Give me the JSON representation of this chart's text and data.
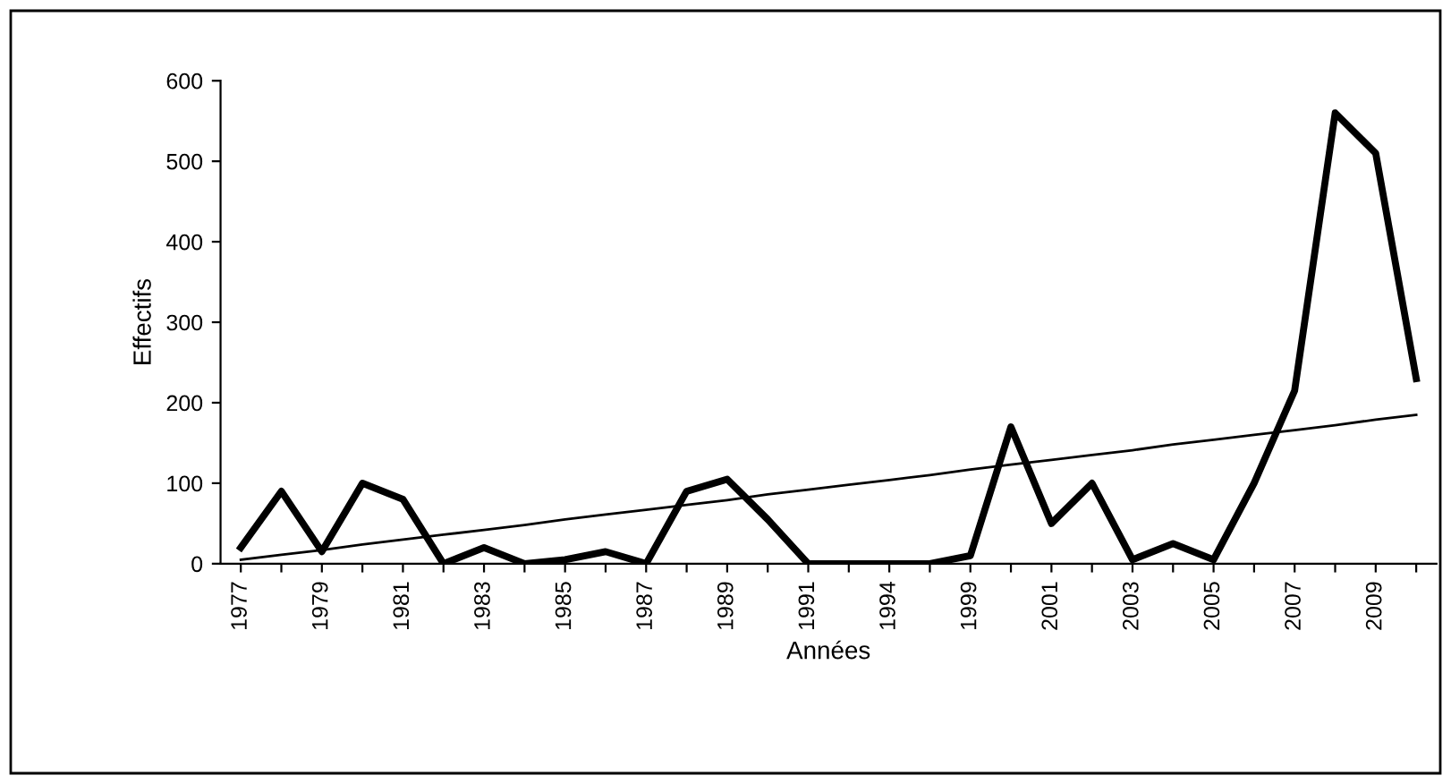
{
  "chart_data": {
    "type": "line",
    "xlabel": "Années",
    "ylabel": "Effectifs",
    "categories": [
      "1977",
      null,
      "1979",
      null,
      "1981",
      null,
      "1983",
      null,
      "1985",
      null,
      "1987",
      null,
      "1989",
      null,
      "1991",
      null,
      "1994",
      null,
      "1999",
      null,
      "2001",
      null,
      "2003",
      null,
      "2005",
      null,
      "2007",
      null,
      "2009",
      null
    ],
    "series": [
      {
        "color": "#000000",
        "values": [
          20,
          90,
          15,
          100,
          80,
          0,
          20,
          0,
          5,
          15,
          0,
          90,
          105,
          55,
          0,
          0,
          0,
          0,
          10,
          170,
          50,
          100,
          5,
          25,
          5,
          100,
          215,
          560,
          510,
          230
        ]
      },
      {
        "color": "#000000",
        "values": [
          5,
          11,
          17,
          24,
          30,
          36,
          42,
          48,
          55,
          61,
          67,
          73,
          79,
          86,
          92,
          98,
          104,
          110,
          117,
          123,
          129,
          135,
          141,
          148,
          154,
          160,
          166,
          172,
          179,
          185
        ]
      }
    ],
    "ylim": [
      0,
      600
    ],
    "yticks": [
      0,
      100,
      200,
      300,
      400,
      500,
      600
    ],
    "grid": false,
    "legend": false
  }
}
